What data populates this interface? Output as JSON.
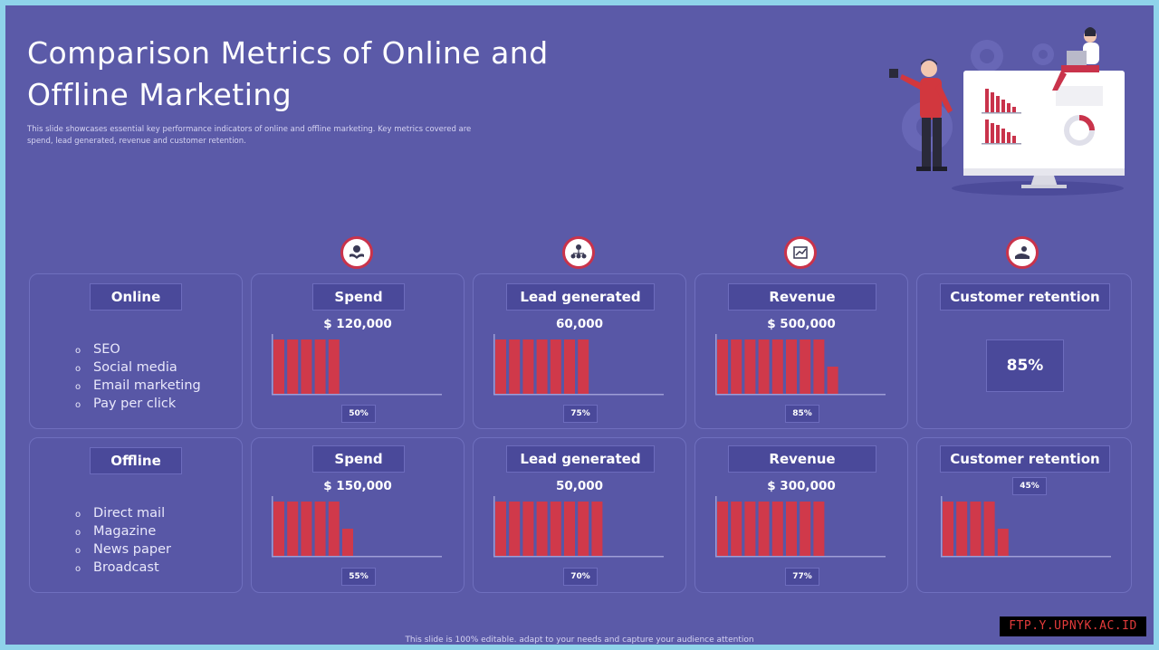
{
  "title": "Comparison Metrics of Online and Offline Marketing",
  "subtitle": "This slide showcases essential key performance indicators of online and offline marketing. Key metrics covered are spend, lead generated, revenue and customer retention.",
  "footer": "This slide is 100% editable. adapt to your needs and capture your audience attention",
  "watermark": "FTP.Y.UPNYK.AC.ID",
  "colors": {
    "background": "#5b5aa8",
    "bar": "#d0394a",
    "card_border": "#6f6fbe",
    "label_bg": "#4a499a"
  },
  "icons": [
    "spend-icon",
    "lead-generated-icon",
    "revenue-icon",
    "customer-retention-icon"
  ],
  "rows": [
    {
      "label": "Online",
      "items": [
        "SEO",
        "Social media",
        "Email marketing",
        "Pay per click"
      ],
      "bullet": "o",
      "metrics": [
        {
          "label": "Spend",
          "value": "$ 120,000",
          "pct_label": "50%"
        },
        {
          "label": "Lead generated",
          "value": "60,000",
          "pct_label": "75%"
        },
        {
          "label": "Revenue",
          "value": "$ 500,000",
          "pct_label": "85%"
        },
        {
          "label": "Customer retention",
          "pct_label": "85%"
        }
      ]
    },
    {
      "label": "Offline",
      "items": [
        "Direct mail",
        "Magazine",
        "News paper",
        "Broadcast"
      ],
      "bullet": "o",
      "metrics": [
        {
          "label": "Spend",
          "value": "$ 150,000",
          "pct_label": "55%"
        },
        {
          "label": "Lead generated",
          "value": "50,000",
          "pct_label": "70%"
        },
        {
          "label": "Revenue",
          "value": "$ 300,000",
          "pct_label": "77%"
        },
        {
          "label": "Customer retention",
          "pct_label": "45%"
        }
      ]
    }
  ],
  "chart_data": [
    {
      "type": "bar",
      "title": "Online Spend",
      "values": [
        1,
        1,
        1,
        1,
        1
      ],
      "ylim": [
        0,
        1
      ]
    },
    {
      "type": "bar",
      "title": "Online Lead generated",
      "values": [
        1,
        1,
        1,
        1,
        1,
        1,
        1
      ],
      "ylim": [
        0,
        1
      ]
    },
    {
      "type": "bar",
      "title": "Online Revenue",
      "values": [
        1,
        1,
        1,
        1,
        1,
        1,
        1,
        1,
        0.5
      ],
      "ylim": [
        0,
        1
      ]
    },
    {
      "type": "bar",
      "title": "Offline Spend",
      "values": [
        1,
        1,
        1,
        1,
        1,
        0.5
      ],
      "ylim": [
        0,
        1
      ]
    },
    {
      "type": "bar",
      "title": "Offline Lead generated",
      "values": [
        1,
        1,
        1,
        1,
        1,
        1,
        1,
        1
      ],
      "ylim": [
        0,
        1
      ]
    },
    {
      "type": "bar",
      "title": "Offline Revenue",
      "values": [
        1,
        1,
        1,
        1,
        1,
        1,
        1,
        1
      ],
      "ylim": [
        0,
        1
      ]
    },
    {
      "type": "bar",
      "title": "Offline Customer retention",
      "values": [
        1,
        1,
        1,
        1,
        0.5
      ],
      "ylim": [
        0,
        1
      ]
    }
  ]
}
